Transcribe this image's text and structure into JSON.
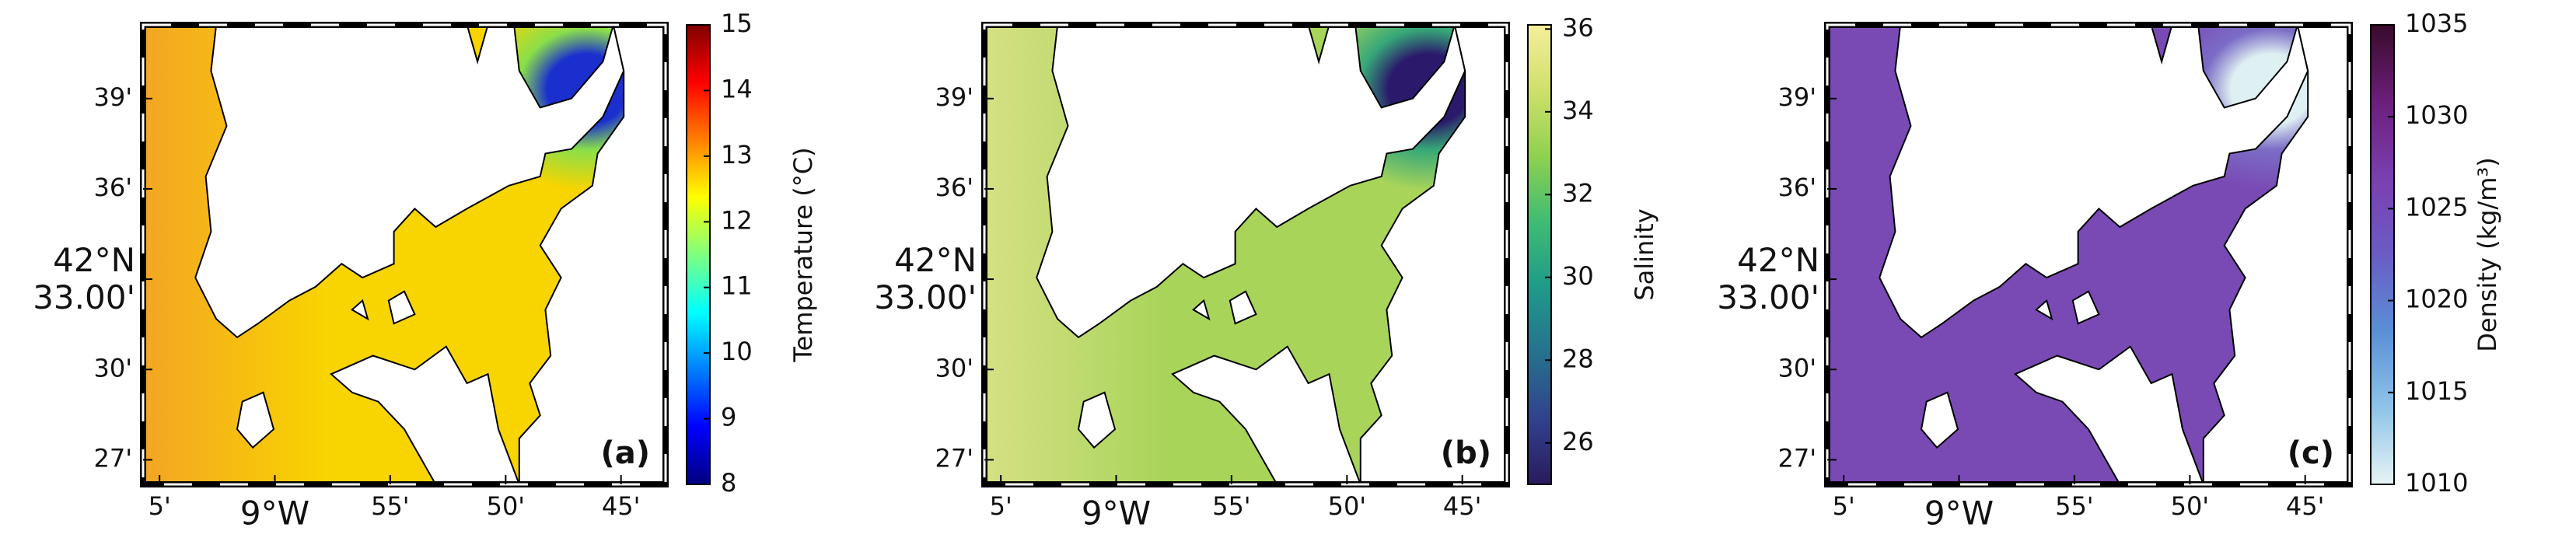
{
  "map_axes": {
    "xlim": [
      -9.0952,
      -8.7178
    ],
    "ylim": [
      42.4364,
      42.6908
    ],
    "xticks": [
      {
        "value": -9.0833,
        "label": "5'"
      },
      {
        "value": -9,
        "label": "9°W"
      },
      {
        "value": -8.9167,
        "label": "55'"
      },
      {
        "value": -8.8333,
        "label": "50'"
      },
      {
        "value": -8.75,
        "label": "45'"
      }
    ],
    "yticks": [
      {
        "value": 42.65,
        "label": "39'"
      },
      {
        "value": 42.6,
        "label": "36'"
      },
      {
        "value": 42.55,
        "label": "42°N\n33.00'"
      },
      {
        "value": 42.5,
        "label": "30'"
      },
      {
        "value": 42.45,
        "label": "27'"
      }
    ]
  },
  "panels": [
    {
      "label": "(a)",
      "water": [
        "#f4a524",
        "#f8d400",
        "#7ee052",
        "#1b2fcf"
      ],
      "colorbar": {
        "title": "Temperature (°C)",
        "lim": [
          8,
          15
        ],
        "ticks": [
          8,
          9,
          10,
          11,
          12,
          13,
          14,
          15
        ],
        "colormap": [
          "#00007f",
          "#0000ff",
          "#007fff",
          "#00ffff",
          "#7fff7f",
          "#ffff00",
          "#ff7f00",
          "#ff0000",
          "#7f0000"
        ]
      }
    },
    {
      "label": "(b)",
      "water": [
        "#d6e084",
        "#a8d45a",
        "#2aa37c",
        "#2b1a6b"
      ],
      "colorbar": {
        "title": "Salinity",
        "lim": [
          25,
          36.1
        ],
        "ticks": [
          26,
          28,
          30,
          32,
          34,
          36
        ],
        "colormap": [
          "#2a1a5e",
          "#31428c",
          "#26718e",
          "#1f9a8a",
          "#3fbc73",
          "#8fd14f",
          "#cfe06a",
          "#f6ee9c"
        ]
      }
    },
    {
      "label": "(c)",
      "water": [
        "#7a4ab4",
        "#7a4ab4",
        "#7b70c8",
        "#dff0f2"
      ],
      "colorbar": {
        "title": "Density (kg/m³)",
        "lim": [
          1010,
          1035
        ],
        "ticks": [
          1010,
          1015,
          1020,
          1025,
          1030,
          1035
        ],
        "colormap": [
          "#e6f4f4",
          "#8ec4e8",
          "#5a8fd6",
          "#6a5cc4",
          "#7b3fb0",
          "#6b1f7a",
          "#3a0a2c"
        ]
      }
    }
  ]
}
